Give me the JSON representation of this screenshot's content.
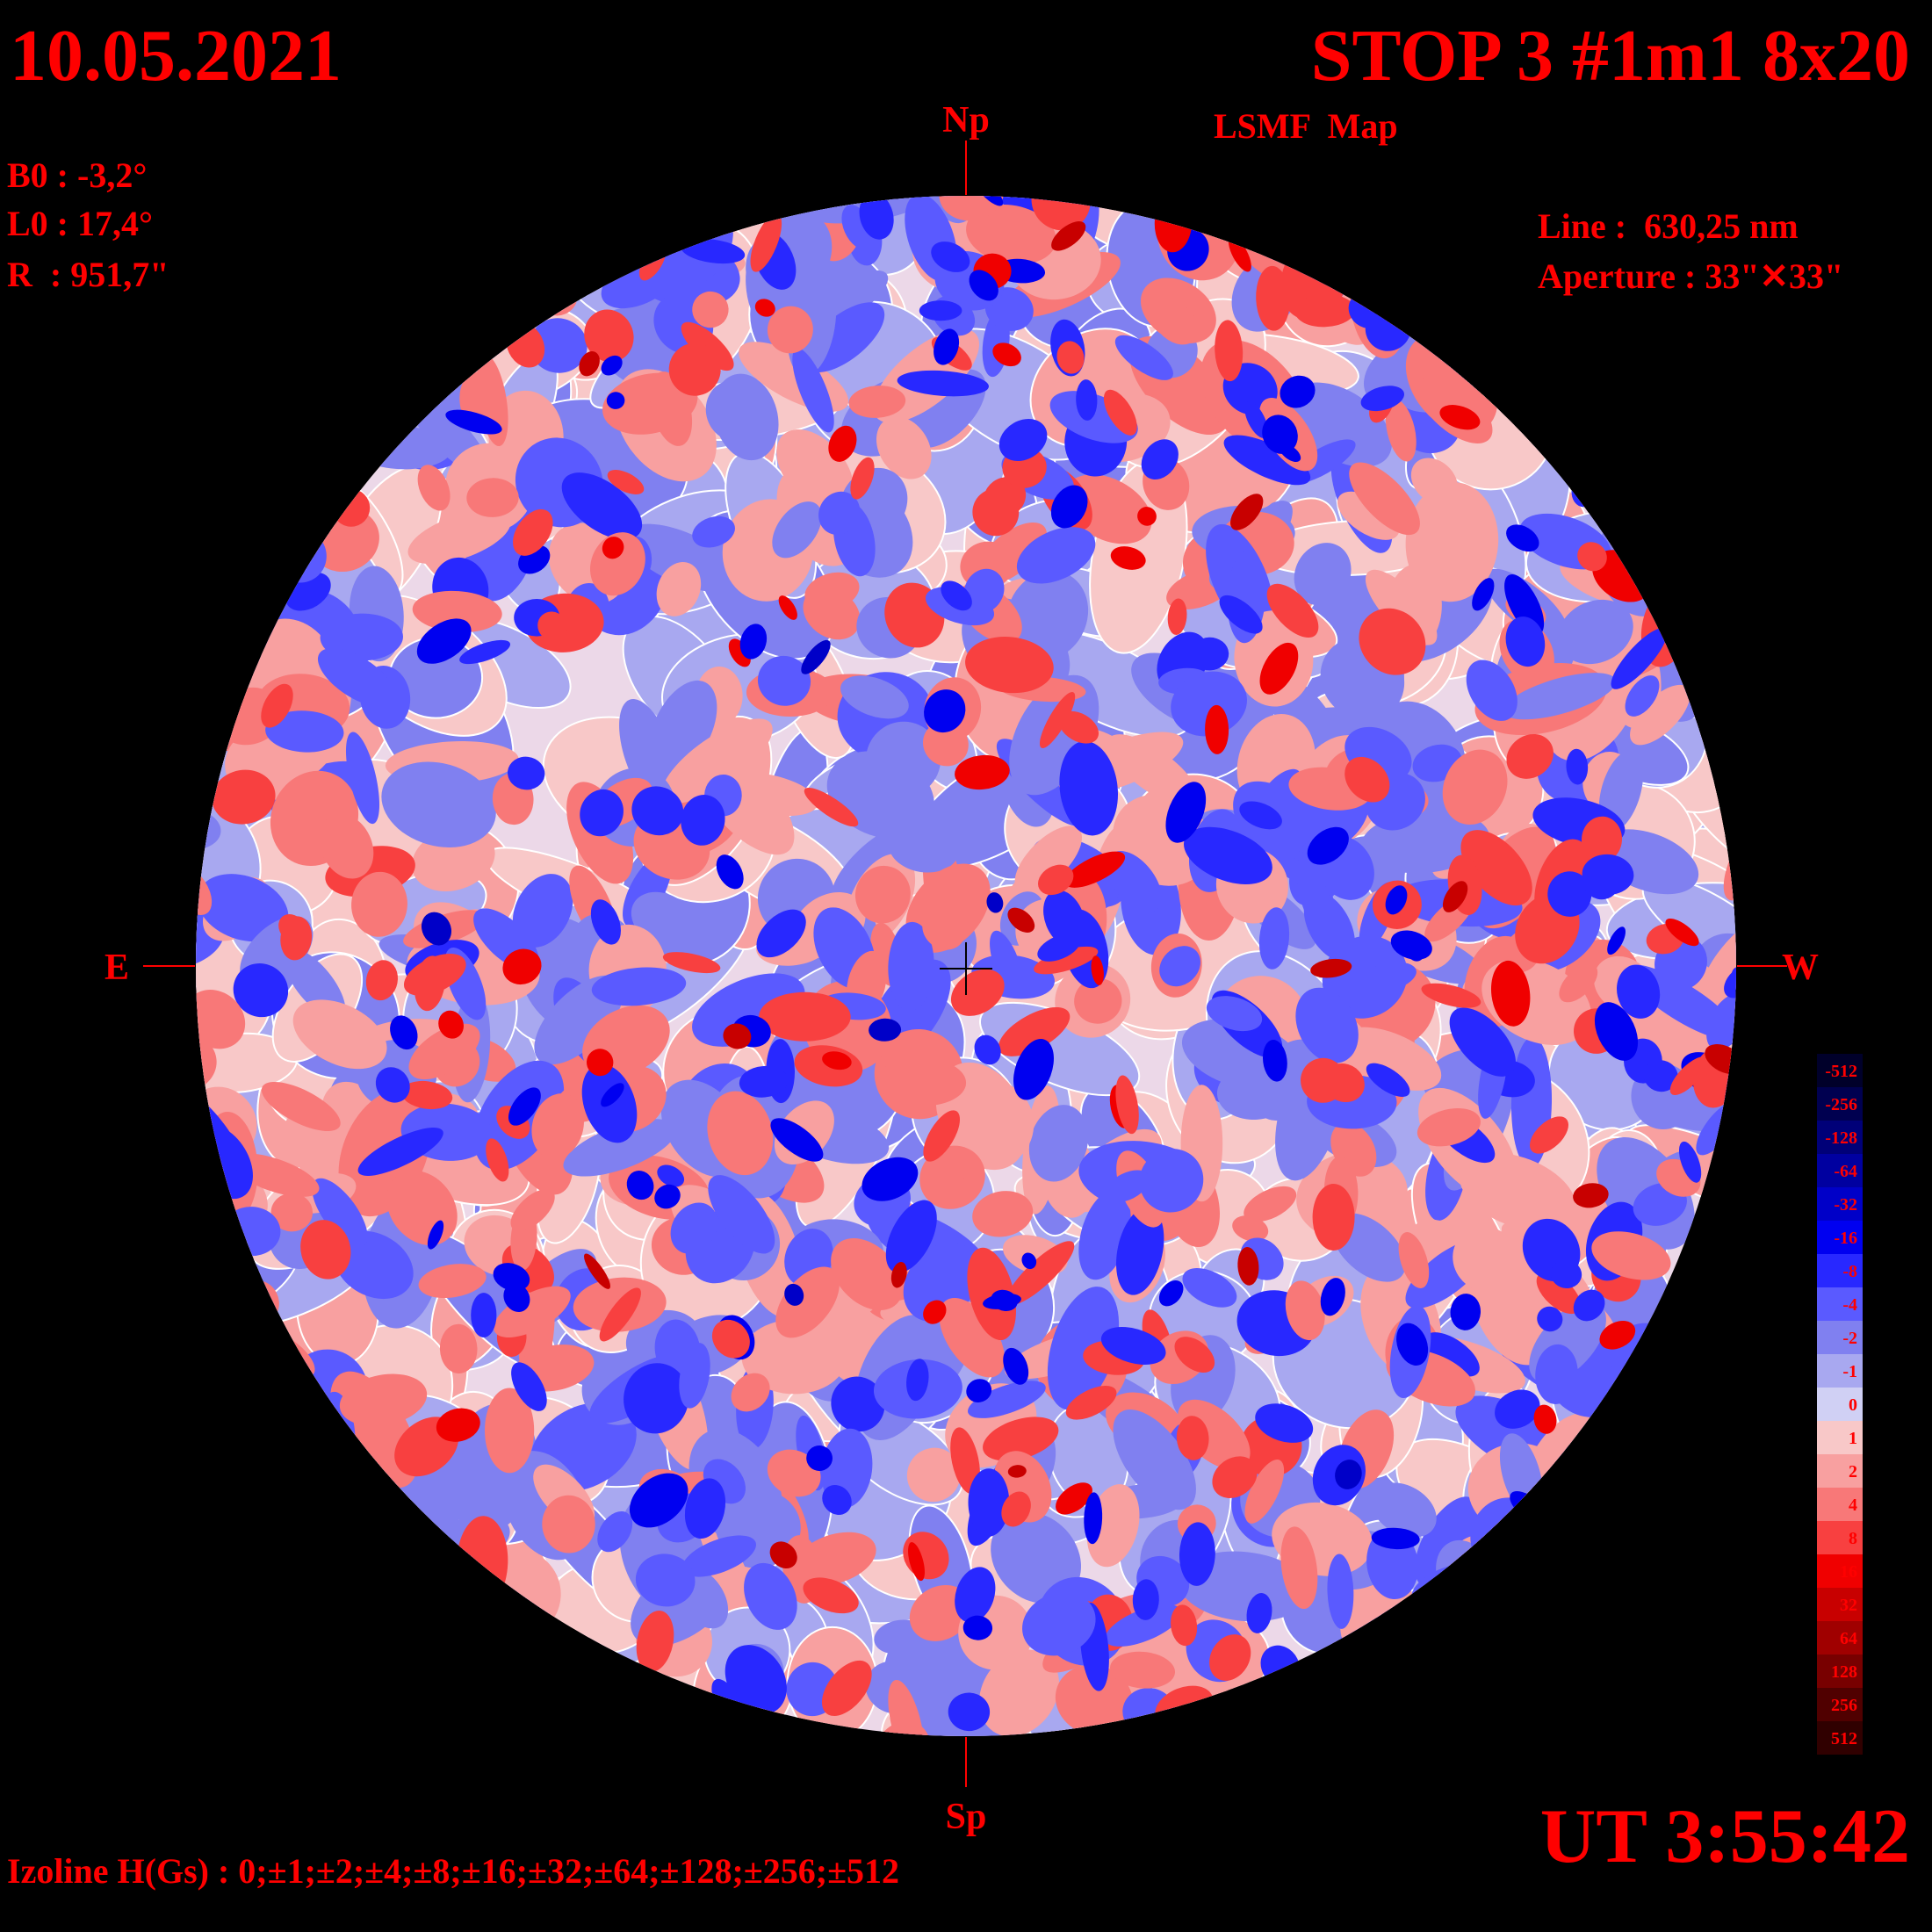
{
  "header": {
    "date": "10.05.2021",
    "title": "STOP 3 #1m1 8x20",
    "subtitle": "LSMF  Map"
  },
  "parameters": {
    "b0": "B0 : -3,2°",
    "l0": "L0 : 17,4°",
    "r": "R  : 951,7\""
  },
  "instrument": {
    "line": "Line :  630,25 nm",
    "aperture": "Aperture : 33\"✕33\""
  },
  "directions": {
    "north": "Np",
    "south": "Sp",
    "east": "E",
    "west": "W"
  },
  "time": "UT 3:55:42",
  "footer": "Izoline H(Gs) : 0;±1;±2;±4;±8;±16;±32;±64;±128;±256;±512",
  "colorbar": [
    {
      "label": "-512",
      "color": "#00002a"
    },
    {
      "label": "-256",
      "color": "#000050"
    },
    {
      "label": "-128",
      "color": "#000078"
    },
    {
      "label": "-64",
      "color": "#0000a0"
    },
    {
      "label": "-32",
      "color": "#0000c8"
    },
    {
      "label": "-16",
      "color": "#0000f0"
    },
    {
      "label": "-8",
      "color": "#2828ff"
    },
    {
      "label": "-4",
      "color": "#5a5aff"
    },
    {
      "label": "-2",
      "color": "#8080f0"
    },
    {
      "label": "-1",
      "color": "#a8a8f0"
    },
    {
      "label": "0",
      "color": "#d0d0f4"
    },
    {
      "label": "1",
      "color": "#f8c8c8"
    },
    {
      "label": "2",
      "color": "#f8a0a0"
    },
    {
      "label": "4",
      "color": "#f87878"
    },
    {
      "label": "8",
      "color": "#f84040"
    },
    {
      "label": "16",
      "color": "#f00000"
    },
    {
      "label": "32",
      "color": "#c80000"
    },
    {
      "label": "64",
      "color": "#a00000"
    },
    {
      "label": "128",
      "color": "#780000"
    },
    {
      "label": "256",
      "color": "#500000"
    },
    {
      "label": "512",
      "color": "#300000"
    }
  ]
}
